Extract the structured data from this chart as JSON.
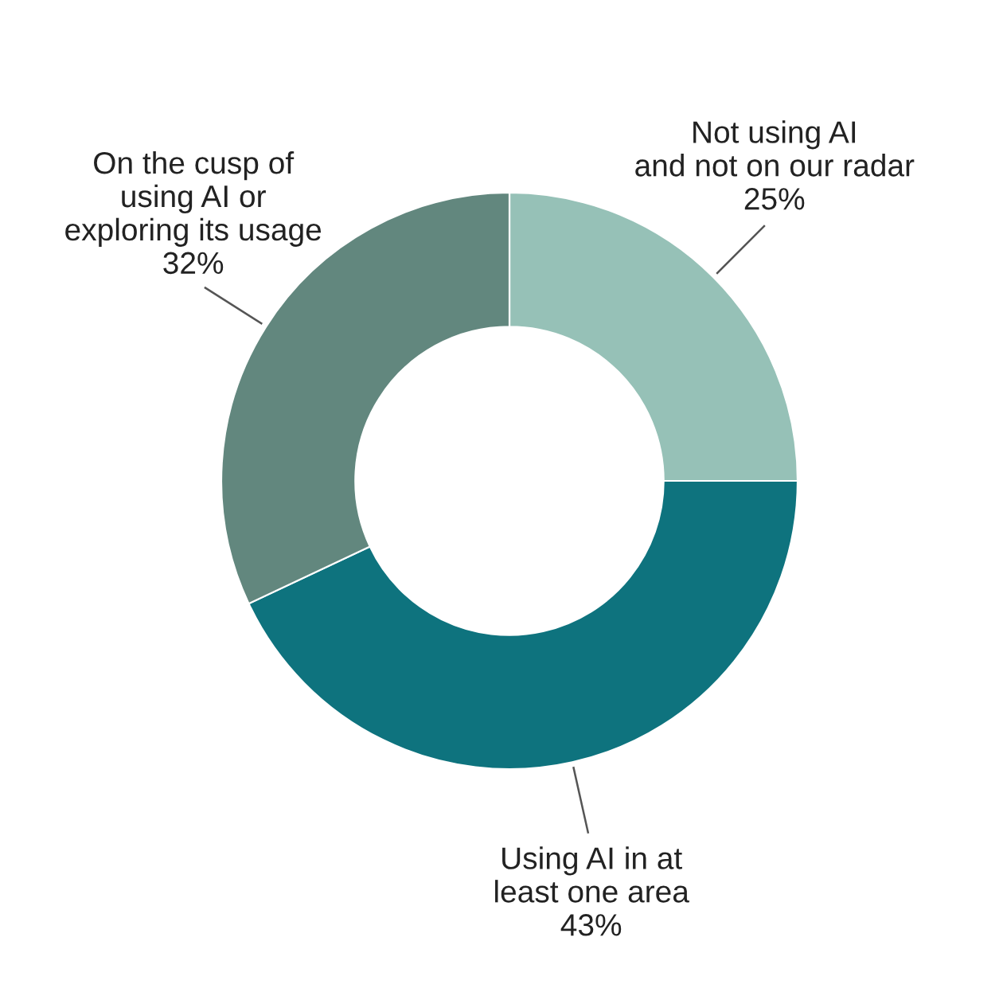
{
  "chart_data": {
    "type": "donut",
    "categories": [
      "Not using AI\nand not on our radar",
      "Using AI in at\nleast one area",
      "On the cusp of\nusing AI or\nexploring its usage"
    ],
    "values": [
      25,
      43,
      32
    ],
    "value_labels": [
      "25%",
      "43%",
      "32%"
    ],
    "colors": [
      "#96c1b7",
      "#0e737e",
      "#62877e"
    ]
  }
}
